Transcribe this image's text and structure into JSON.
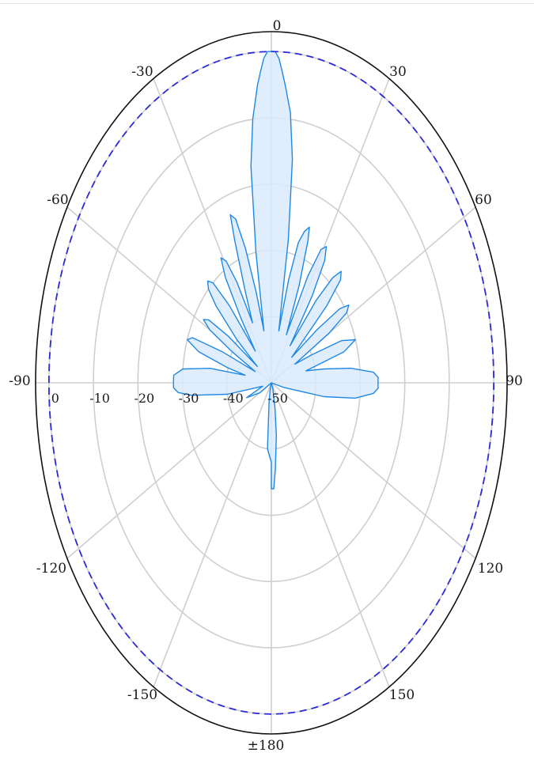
{
  "chart_data": {
    "type": "polar",
    "angle_labels": [
      "0",
      "30",
      "60",
      "90",
      "120",
      "150",
      "±180",
      "-150",
      "-120",
      "-90",
      "-60",
      "-30"
    ],
    "angles_deg": [
      0,
      30,
      60,
      90,
      120,
      150,
      180,
      -150,
      -120,
      -90,
      -60,
      -30
    ],
    "radial_labels": [
      "0",
      "-10",
      "-20",
      "-30",
      "-40",
      "-50"
    ],
    "radial_values_db": [
      0,
      -10,
      -20,
      -30,
      -40,
      -50
    ],
    "radial_range_db": [
      -50,
      3
    ],
    "reference_level_db": 0,
    "grid": true,
    "colors": {
      "pattern_stroke": "#1e88e5",
      "pattern_fill": "#dbeafb",
      "reference_line": "#2a2ad8",
      "grid": "#cfcfcf",
      "outer_circle": "#111111"
    },
    "series": [
      {
        "type": "area",
        "points": [
          [
            -180,
            -38
          ],
          [
            -175,
            -40
          ],
          [
            -170,
            -47
          ],
          [
            -165,
            -49
          ],
          [
            -160,
            -50
          ],
          [
            -150,
            -50
          ],
          [
            -130,
            -50
          ],
          [
            -120,
            -47
          ],
          [
            -112,
            -44
          ],
          [
            -105,
            -48
          ],
          [
            -100,
            -40
          ],
          [
            -96,
            -32
          ],
          [
            -94,
            -29
          ],
          [
            -92,
            -28
          ],
          [
            -90,
            -28
          ],
          [
            -87,
            -28
          ],
          [
            -84,
            -30
          ],
          [
            -81,
            -36
          ],
          [
            -79,
            -44
          ],
          [
            -77,
            -40
          ],
          [
            -74,
            -33
          ],
          [
            -71,
            -30
          ],
          [
            -69,
            -31
          ],
          [
            -67,
            -38
          ],
          [
            -65,
            -46
          ],
          [
            -62,
            -40
          ],
          [
            -60,
            -34
          ],
          [
            -58,
            -32
          ],
          [
            -56,
            -33
          ],
          [
            -54,
            -38
          ],
          [
            -52,
            -46
          ],
          [
            -50,
            -40
          ],
          [
            -47,
            -33
          ],
          [
            -45,
            -30
          ],
          [
            -43,
            -29
          ],
          [
            -41,
            -30
          ],
          [
            -39,
            -35
          ],
          [
            -37,
            -44
          ],
          [
            -35,
            -38
          ],
          [
            -33,
            -31
          ],
          [
            -31,
            -28
          ],
          [
            -29,
            -29
          ],
          [
            -27,
            -33
          ],
          [
            -25,
            -40
          ],
          [
            -23,
            -35
          ],
          [
            -21,
            -27
          ],
          [
            -20,
            -23
          ],
          [
            -18,
            -24
          ],
          [
            -16,
            -29
          ],
          [
            -14,
            -36
          ],
          [
            -12,
            -42
          ],
          [
            -10,
            -30
          ],
          [
            -8,
            -17
          ],
          [
            -6,
            -10
          ],
          [
            -4,
            -5
          ],
          [
            -3,
            -3
          ],
          [
            -2,
            -1
          ],
          [
            -1,
            0
          ],
          [
            0,
            0
          ],
          [
            1,
            0
          ],
          [
            2,
            -1
          ],
          [
            3,
            -3
          ],
          [
            4,
            -5
          ],
          [
            6,
            -9
          ],
          [
            8,
            -16
          ],
          [
            10,
            -28
          ],
          [
            12,
            -42
          ],
          [
            14,
            -34
          ],
          [
            16,
            -28
          ],
          [
            18,
            -26
          ],
          [
            20,
            -25
          ],
          [
            21,
            -27
          ],
          [
            23,
            -34
          ],
          [
            25,
            -42
          ],
          [
            27,
            -32
          ],
          [
            29,
            -27
          ],
          [
            31,
            -26
          ],
          [
            33,
            -28
          ],
          [
            35,
            -34
          ],
          [
            37,
            -43
          ],
          [
            39,
            -34
          ],
          [
            41,
            -29
          ],
          [
            43,
            -27
          ],
          [
            45,
            -28
          ],
          [
            47,
            -33
          ],
          [
            50,
            -44
          ],
          [
            52,
            -37
          ],
          [
            54,
            -31
          ],
          [
            56,
            -29
          ],
          [
            58,
            -30
          ],
          [
            60,
            -35
          ],
          [
            62,
            -44
          ],
          [
            65,
            -40
          ],
          [
            68,
            -33
          ],
          [
            71,
            -30
          ],
          [
            74,
            -33
          ],
          [
            77,
            -42
          ],
          [
            80,
            -38
          ],
          [
            83,
            -32
          ],
          [
            86,
            -27
          ],
          [
            88,
            -26
          ],
          [
            90,
            -26
          ],
          [
            92,
            -26
          ],
          [
            94,
            -27
          ],
          [
            97,
            -31
          ],
          [
            100,
            -38
          ],
          [
            104,
            -47
          ],
          [
            110,
            -50
          ],
          [
            130,
            -50
          ],
          [
            150,
            -50
          ],
          [
            160,
            -49
          ],
          [
            168,
            -46
          ],
          [
            172,
            -42
          ],
          [
            176,
            -37
          ],
          [
            178,
            -34
          ],
          [
            180,
            -34
          ]
        ]
      }
    ]
  }
}
